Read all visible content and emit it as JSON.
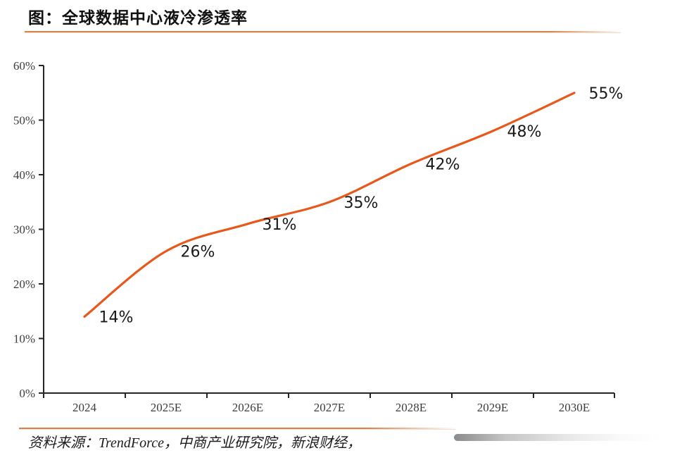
{
  "page": {
    "title": "图：全球数据中心液冷渗透率",
    "source": "资料来源：TrendForce，中商产业研究院，新浪财经，"
  },
  "colors": {
    "line": "#e8581a",
    "accent_rule": "#d8834b",
    "axis": "#262626",
    "axis_label": "#3d3d3d",
    "data_label": "#1a1a1a"
  },
  "chart_data": {
    "type": "line",
    "title": "全球数据中心液冷渗透率",
    "categories": [
      "2024",
      "2025E",
      "2026E",
      "2027E",
      "2028E",
      "2029E",
      "2030E"
    ],
    "values": [
      14,
      26,
      31,
      35,
      42,
      48,
      55
    ],
    "data_labels": [
      "14%",
      "26%",
      "31%",
      "35%",
      "42%",
      "48%",
      "55%"
    ],
    "unit": "%",
    "xlabel": "",
    "ylabel": "",
    "ylim": [
      0,
      60
    ],
    "ytick_step": 10,
    "ytick_labels": [
      "0%",
      "10%",
      "20%",
      "30%",
      "40%",
      "50%",
      "60%"
    ],
    "grid": false,
    "legend": false,
    "line_style": "smooth"
  }
}
